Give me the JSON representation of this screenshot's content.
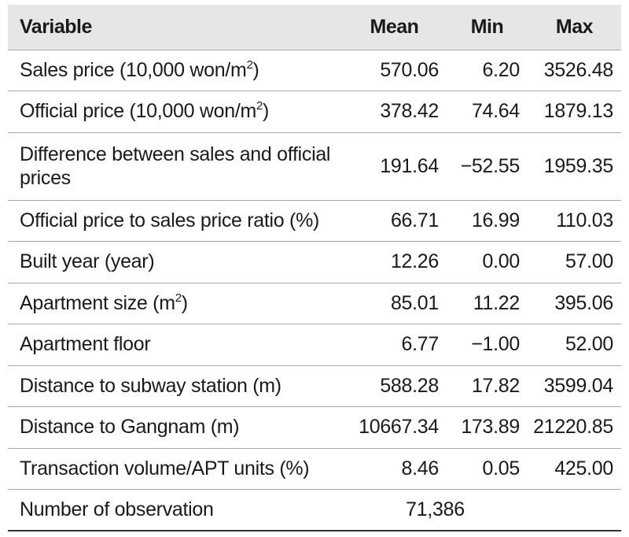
{
  "table": {
    "headers": {
      "variable": "Variable",
      "mean": "Mean",
      "min": "Min",
      "max": "Max"
    },
    "rows": [
      {
        "label": "Sales price (10,000 won/m",
        "sup": "2",
        "suffix": ")",
        "mean": "570.06",
        "min": "6.20",
        "max": "3526.48"
      },
      {
        "label": "Official price (10,000 won/m",
        "sup": "2",
        "suffix": ")",
        "mean": "378.42",
        "min": "74.64",
        "max": "1879.13"
      },
      {
        "label": "Difference between sales and official prices",
        "mean": "191.64",
        "min": "−52.55",
        "max": "1959.35"
      },
      {
        "label": "Official price to sales price ratio (%)",
        "mean": "66.71",
        "min": "16.99",
        "max": "110.03"
      },
      {
        "label": "Built year (year)",
        "mean": "12.26",
        "min": "0.00",
        "max": "57.00"
      },
      {
        "label": "Apartment size (m",
        "sup": "2",
        "suffix": ")",
        "mean": "85.01",
        "min": "11.22",
        "max": "395.06"
      },
      {
        "label": "Apartment floor",
        "mean": "6.77",
        "min": "−1.00",
        "max": "52.00"
      },
      {
        "label": "Distance to subway station (m)",
        "mean": "588.28",
        "min": "17.82",
        "max": "3599.04"
      },
      {
        "label": "Distance to Gangnam (m)",
        "mean": "10667.34",
        "min": "173.89",
        "max": "21220.85"
      },
      {
        "label": "Transaction volume/APT units (%)",
        "mean": "8.46",
        "min": "0.05",
        "max": "425.00"
      }
    ],
    "observation": {
      "label": "Number of observation",
      "value": "71,386"
    }
  }
}
